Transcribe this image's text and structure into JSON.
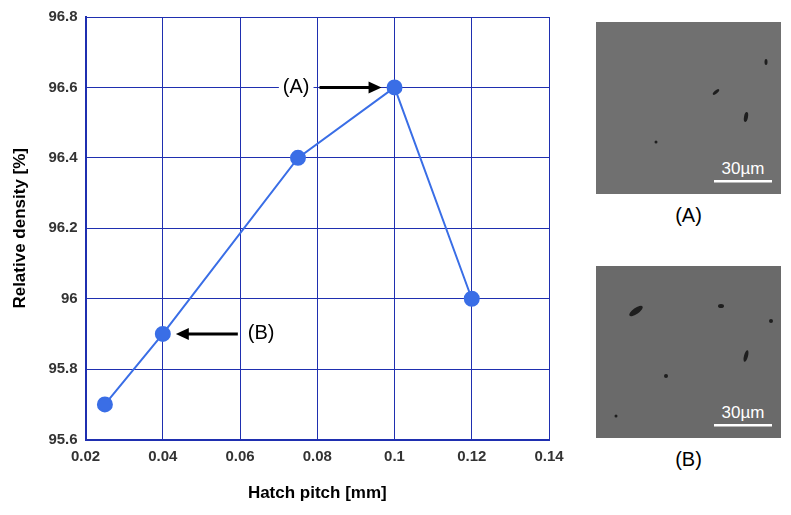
{
  "chart_data": {
    "type": "line",
    "x": [
      0.025,
      0.04,
      0.075,
      0.1,
      0.12
    ],
    "values": [
      95.7,
      95.9,
      96.4,
      96.6,
      96
    ],
    "color": "#3a6ee6",
    "marker": "circle",
    "line_style": "solid",
    "xlabel": "Hatch pitch [mm]",
    "ylabel": "Relative density [%]",
    "xlim": [
      0.02,
      0.14
    ],
    "xticks": [
      0.02,
      0.04,
      0.06,
      0.08,
      0.1,
      0.12,
      0.14
    ],
    "ylim": [
      95.6,
      96.8
    ],
    "yticks": [
      95.6,
      95.8,
      96,
      96.2,
      96.4,
      96.6,
      96.8
    ],
    "grid": true,
    "annotations": [
      {
        "text": "(A)",
        "x": 0.1,
        "y": 96.6
      },
      {
        "text": "(B)",
        "x": 0.04,
        "y": 95.9
      }
    ]
  },
  "micrographs": [
    {
      "label": "(A)",
      "scale_bar": "30µm"
    },
    {
      "label": "(B)",
      "scale_bar": "30µm"
    }
  ]
}
